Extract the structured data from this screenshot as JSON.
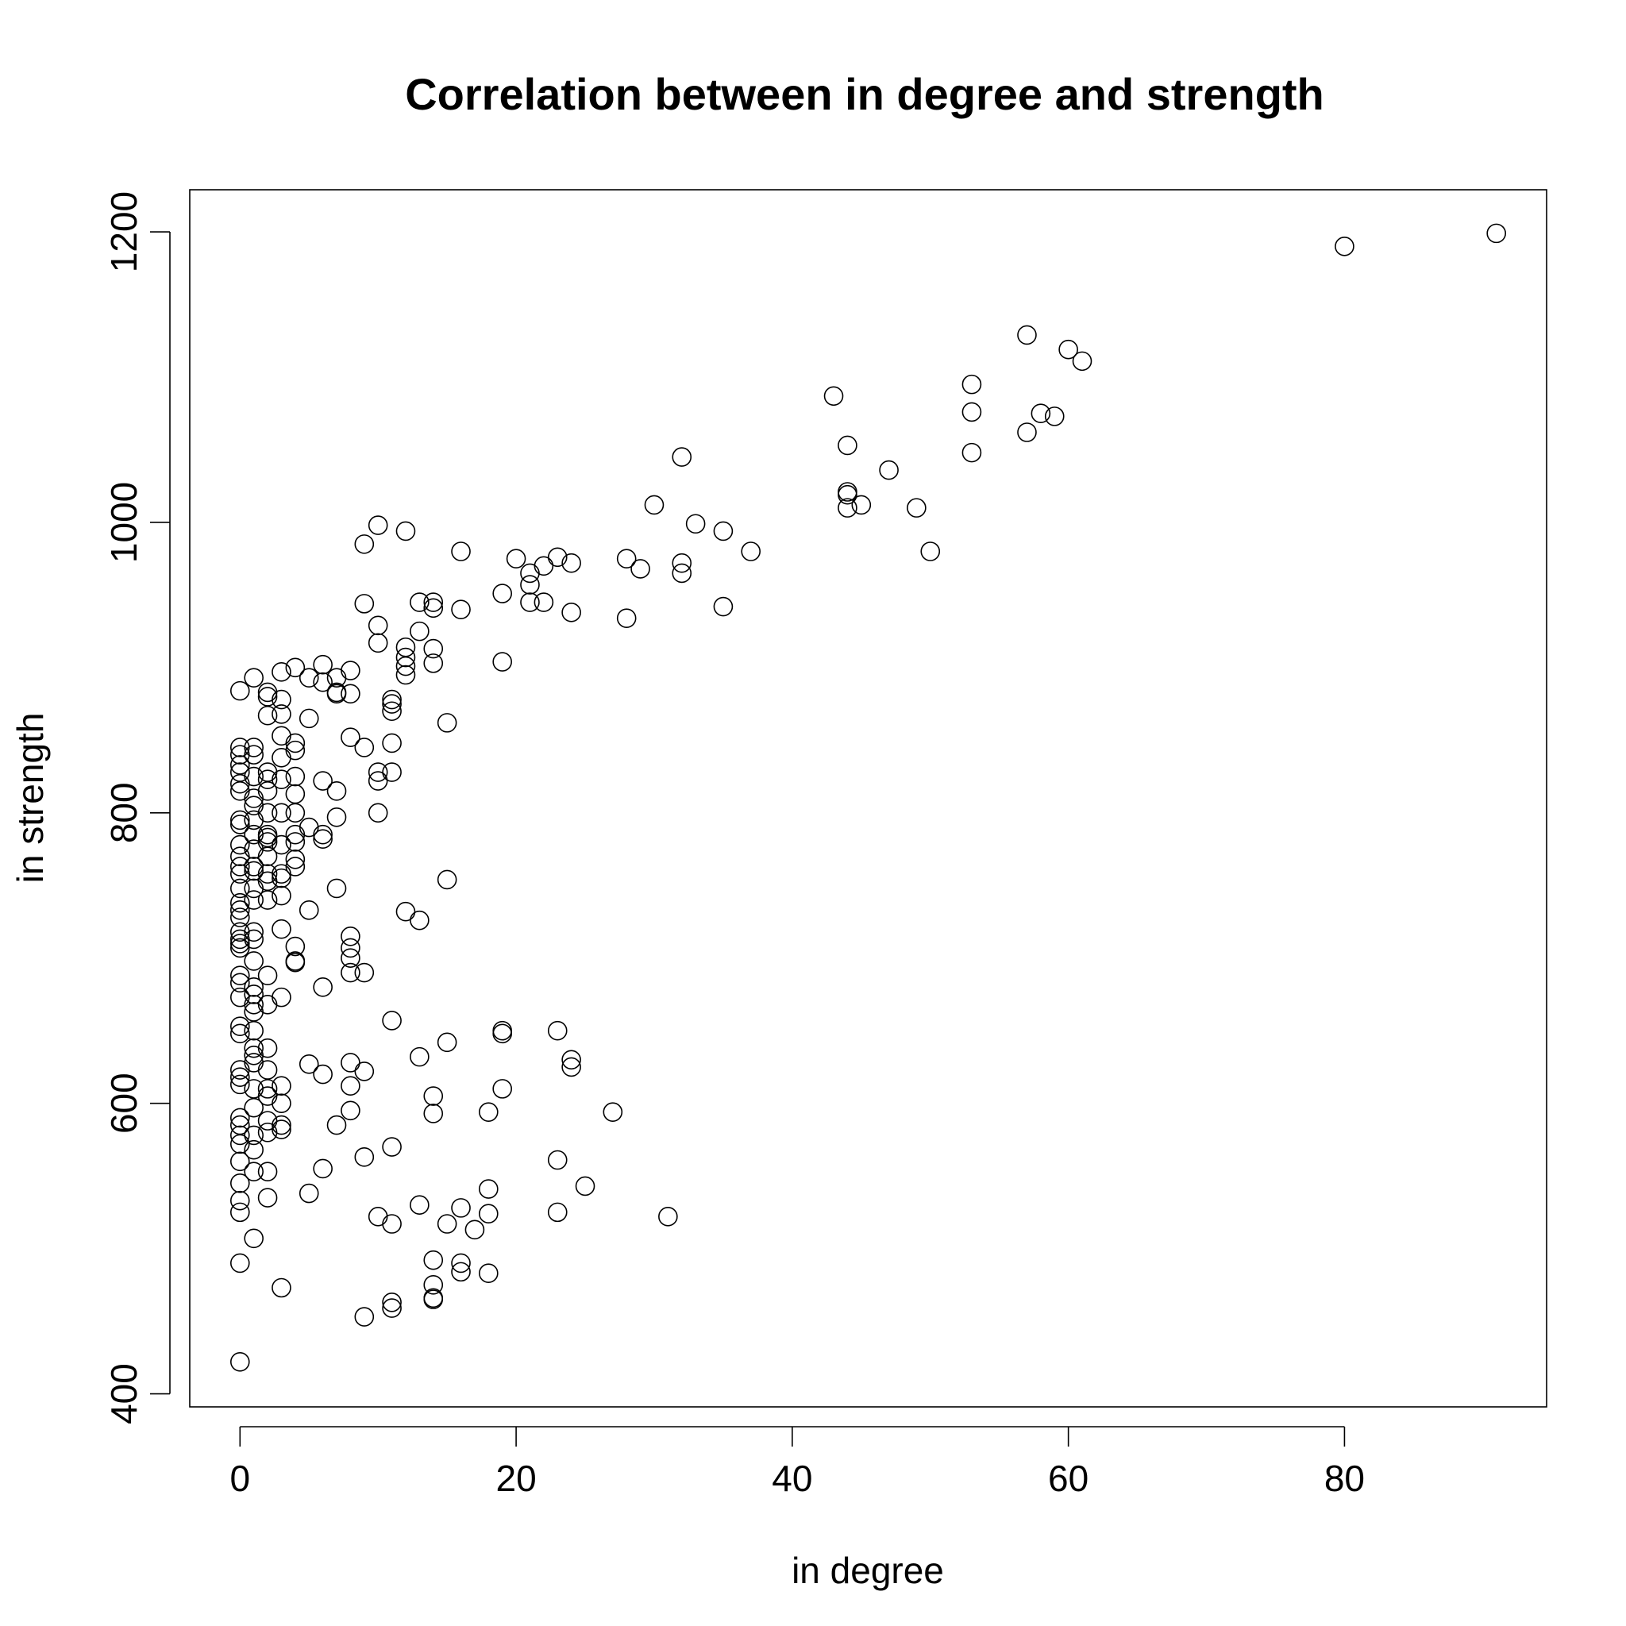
{
  "chart_data": {
    "type": "scatter",
    "title": "Correlation between in degree and strength",
    "xlabel": "in degree",
    "ylabel": "in strength",
    "xlim": [
      -3.64,
      94.64
    ],
    "ylim": [
      391,
      1229
    ],
    "xticks": [
      0,
      20,
      40,
      60,
      80
    ],
    "yticks": [
      400,
      600,
      800,
      1000,
      1200
    ],
    "grid": false,
    "marker": "open-circle",
    "points": [
      [
        0,
        884
      ],
      [
        0,
        845
      ],
      [
        0,
        840
      ],
      [
        0,
        833
      ],
      [
        0,
        828
      ],
      [
        0,
        820
      ],
      [
        0,
        815
      ],
      [
        0,
        795
      ],
      [
        0,
        792
      ],
      [
        0,
        778
      ],
      [
        0,
        770
      ],
      [
        0,
        763
      ],
      [
        0,
        758
      ],
      [
        0,
        748
      ],
      [
        0,
        738
      ],
      [
        0,
        733
      ],
      [
        0,
        728
      ],
      [
        0,
        718
      ],
      [
        0,
        713
      ],
      [
        0,
        710
      ],
      [
        0,
        707
      ],
      [
        0,
        688
      ],
      [
        0,
        683
      ],
      [
        0,
        673
      ],
      [
        0,
        653
      ],
      [
        0,
        648
      ],
      [
        0,
        623
      ],
      [
        0,
        618
      ],
      [
        0,
        613
      ],
      [
        0,
        590
      ],
      [
        0,
        585
      ],
      [
        0,
        578
      ],
      [
        0,
        572
      ],
      [
        0,
        560
      ],
      [
        0,
        545
      ],
      [
        0,
        533
      ],
      [
        0,
        525
      ],
      [
        0,
        490
      ],
      [
        0,
        422
      ],
      [
        1,
        893
      ],
      [
        1,
        845
      ],
      [
        1,
        840
      ],
      [
        1,
        825
      ],
      [
        1,
        810
      ],
      [
        1,
        805
      ],
      [
        1,
        795
      ],
      [
        1,
        785
      ],
      [
        1,
        775
      ],
      [
        1,
        763
      ],
      [
        1,
        760
      ],
      [
        1,
        748
      ],
      [
        1,
        740
      ],
      [
        1,
        718
      ],
      [
        1,
        713
      ],
      [
        1,
        698
      ],
      [
        1,
        680
      ],
      [
        1,
        675
      ],
      [
        1,
        668
      ],
      [
        1,
        663
      ],
      [
        1,
        650
      ],
      [
        1,
        638
      ],
      [
        1,
        633
      ],
      [
        1,
        628
      ],
      [
        1,
        610
      ],
      [
        1,
        597
      ],
      [
        1,
        578
      ],
      [
        1,
        568
      ],
      [
        1,
        553
      ],
      [
        1,
        507
      ],
      [
        2,
        883
      ],
      [
        2,
        880
      ],
      [
        2,
        867
      ],
      [
        2,
        828
      ],
      [
        2,
        823
      ],
      [
        2,
        815
      ],
      [
        2,
        800
      ],
      [
        2,
        785
      ],
      [
        2,
        783
      ],
      [
        2,
        780
      ],
      [
        2,
        770
      ],
      [
        2,
        758
      ],
      [
        2,
        753
      ],
      [
        2,
        740
      ],
      [
        2,
        688
      ],
      [
        2,
        668
      ],
      [
        2,
        638
      ],
      [
        2,
        623
      ],
      [
        2,
        610
      ],
      [
        2,
        605
      ],
      [
        2,
        588
      ],
      [
        2,
        580
      ],
      [
        2,
        553
      ],
      [
        2,
        535
      ],
      [
        3,
        897
      ],
      [
        3,
        878
      ],
      [
        3,
        868
      ],
      [
        3,
        853
      ],
      [
        3,
        838
      ],
      [
        3,
        823
      ],
      [
        3,
        800
      ],
      [
        3,
        778
      ],
      [
        3,
        758
      ],
      [
        3,
        755
      ],
      [
        3,
        743
      ],
      [
        3,
        720
      ],
      [
        3,
        673
      ],
      [
        3,
        612
      ],
      [
        3,
        600
      ],
      [
        3,
        585
      ],
      [
        3,
        582
      ],
      [
        3,
        473
      ],
      [
        4,
        900
      ],
      [
        4,
        848
      ],
      [
        4,
        843
      ],
      [
        4,
        825
      ],
      [
        4,
        813
      ],
      [
        4,
        800
      ],
      [
        4,
        785
      ],
      [
        4,
        780
      ],
      [
        4,
        768
      ],
      [
        4,
        763
      ],
      [
        4,
        708
      ],
      [
        4,
        698
      ],
      [
        4,
        697
      ],
      [
        5,
        893
      ],
      [
        5,
        865
      ],
      [
        5,
        790
      ],
      [
        5,
        733
      ],
      [
        5,
        627
      ],
      [
        5,
        538
      ],
      [
        6,
        902
      ],
      [
        6,
        890
      ],
      [
        6,
        822
      ],
      [
        6,
        785
      ],
      [
        6,
        782
      ],
      [
        6,
        680
      ],
      [
        6,
        620
      ],
      [
        6,
        555
      ],
      [
        7,
        893
      ],
      [
        7,
        883
      ],
      [
        7,
        882
      ],
      [
        7,
        815
      ],
      [
        7,
        797
      ],
      [
        7,
        748
      ],
      [
        7,
        585
      ],
      [
        8,
        898
      ],
      [
        8,
        882
      ],
      [
        8,
        852
      ],
      [
        8,
        715
      ],
      [
        8,
        707
      ],
      [
        8,
        700
      ],
      [
        8,
        690
      ],
      [
        8,
        628
      ],
      [
        8,
        612
      ],
      [
        8,
        595
      ],
      [
        9,
        985
      ],
      [
        9,
        944
      ],
      [
        9,
        845
      ],
      [
        9,
        690
      ],
      [
        9,
        622
      ],
      [
        9,
        563
      ],
      [
        9,
        453
      ],
      [
        10,
        998
      ],
      [
        10,
        929
      ],
      [
        10,
        917
      ],
      [
        10,
        828
      ],
      [
        10,
        822
      ],
      [
        10,
        800
      ],
      [
        10,
        522
      ],
      [
        11,
        878
      ],
      [
        11,
        875
      ],
      [
        11,
        870
      ],
      [
        11,
        848
      ],
      [
        11,
        828
      ],
      [
        11,
        657
      ],
      [
        11,
        570
      ],
      [
        11,
        517
      ],
      [
        11,
        463
      ],
      [
        11,
        459
      ],
      [
        12,
        994
      ],
      [
        12,
        914
      ],
      [
        12,
        907
      ],
      [
        12,
        901
      ],
      [
        12,
        895
      ],
      [
        12,
        732
      ],
      [
        13,
        945
      ],
      [
        13,
        925
      ],
      [
        13,
        726
      ],
      [
        13,
        632
      ],
      [
        13,
        530
      ],
      [
        14,
        945
      ],
      [
        14,
        941
      ],
      [
        14,
        913
      ],
      [
        14,
        903
      ],
      [
        14,
        605
      ],
      [
        14,
        593
      ],
      [
        14,
        492
      ],
      [
        14,
        475
      ],
      [
        14,
        466
      ],
      [
        14,
        465
      ],
      [
        15,
        862
      ],
      [
        15,
        754
      ],
      [
        15,
        642
      ],
      [
        15,
        517
      ],
      [
        16,
        980
      ],
      [
        16,
        940
      ],
      [
        16,
        528
      ],
      [
        16,
        490
      ],
      [
        16,
        484
      ],
      [
        17,
        513
      ],
      [
        18,
        594
      ],
      [
        18,
        541
      ],
      [
        18,
        524
      ],
      [
        18,
        483
      ],
      [
        19,
        951
      ],
      [
        19,
        904
      ],
      [
        19,
        650
      ],
      [
        19,
        648
      ],
      [
        19,
        610
      ],
      [
        20,
        975
      ],
      [
        21,
        965
      ],
      [
        21,
        957
      ],
      [
        21,
        945
      ],
      [
        22,
        970
      ],
      [
        22,
        945
      ],
      [
        23,
        976
      ],
      [
        23,
        650
      ],
      [
        23,
        561
      ],
      [
        23,
        525
      ],
      [
        24,
        972
      ],
      [
        24,
        938
      ],
      [
        24,
        630
      ],
      [
        24,
        625
      ],
      [
        25,
        543
      ],
      [
        27,
        594
      ],
      [
        28,
        975
      ],
      [
        28,
        934
      ],
      [
        29,
        968
      ],
      [
        30,
        1012
      ],
      [
        31,
        522
      ],
      [
        32,
        1045
      ],
      [
        32,
        972
      ],
      [
        32,
        965
      ],
      [
        33,
        999
      ],
      [
        35,
        994
      ],
      [
        35,
        942
      ],
      [
        37,
        980
      ],
      [
        43,
        1087
      ],
      [
        44,
        1053
      ],
      [
        44,
        1021
      ],
      [
        44,
        1019
      ],
      [
        44,
        1010
      ],
      [
        45,
        1012
      ],
      [
        47,
        1036
      ],
      [
        49,
        1010
      ],
      [
        50,
        980
      ],
      [
        53,
        1095
      ],
      [
        53,
        1076
      ],
      [
        53,
        1048
      ],
      [
        57,
        1129
      ],
      [
        57,
        1062
      ],
      [
        58,
        1075
      ],
      [
        59,
        1073
      ],
      [
        60,
        1119
      ],
      [
        61,
        1111
      ],
      [
        80,
        1190
      ],
      [
        91,
        1199
      ]
    ]
  }
}
